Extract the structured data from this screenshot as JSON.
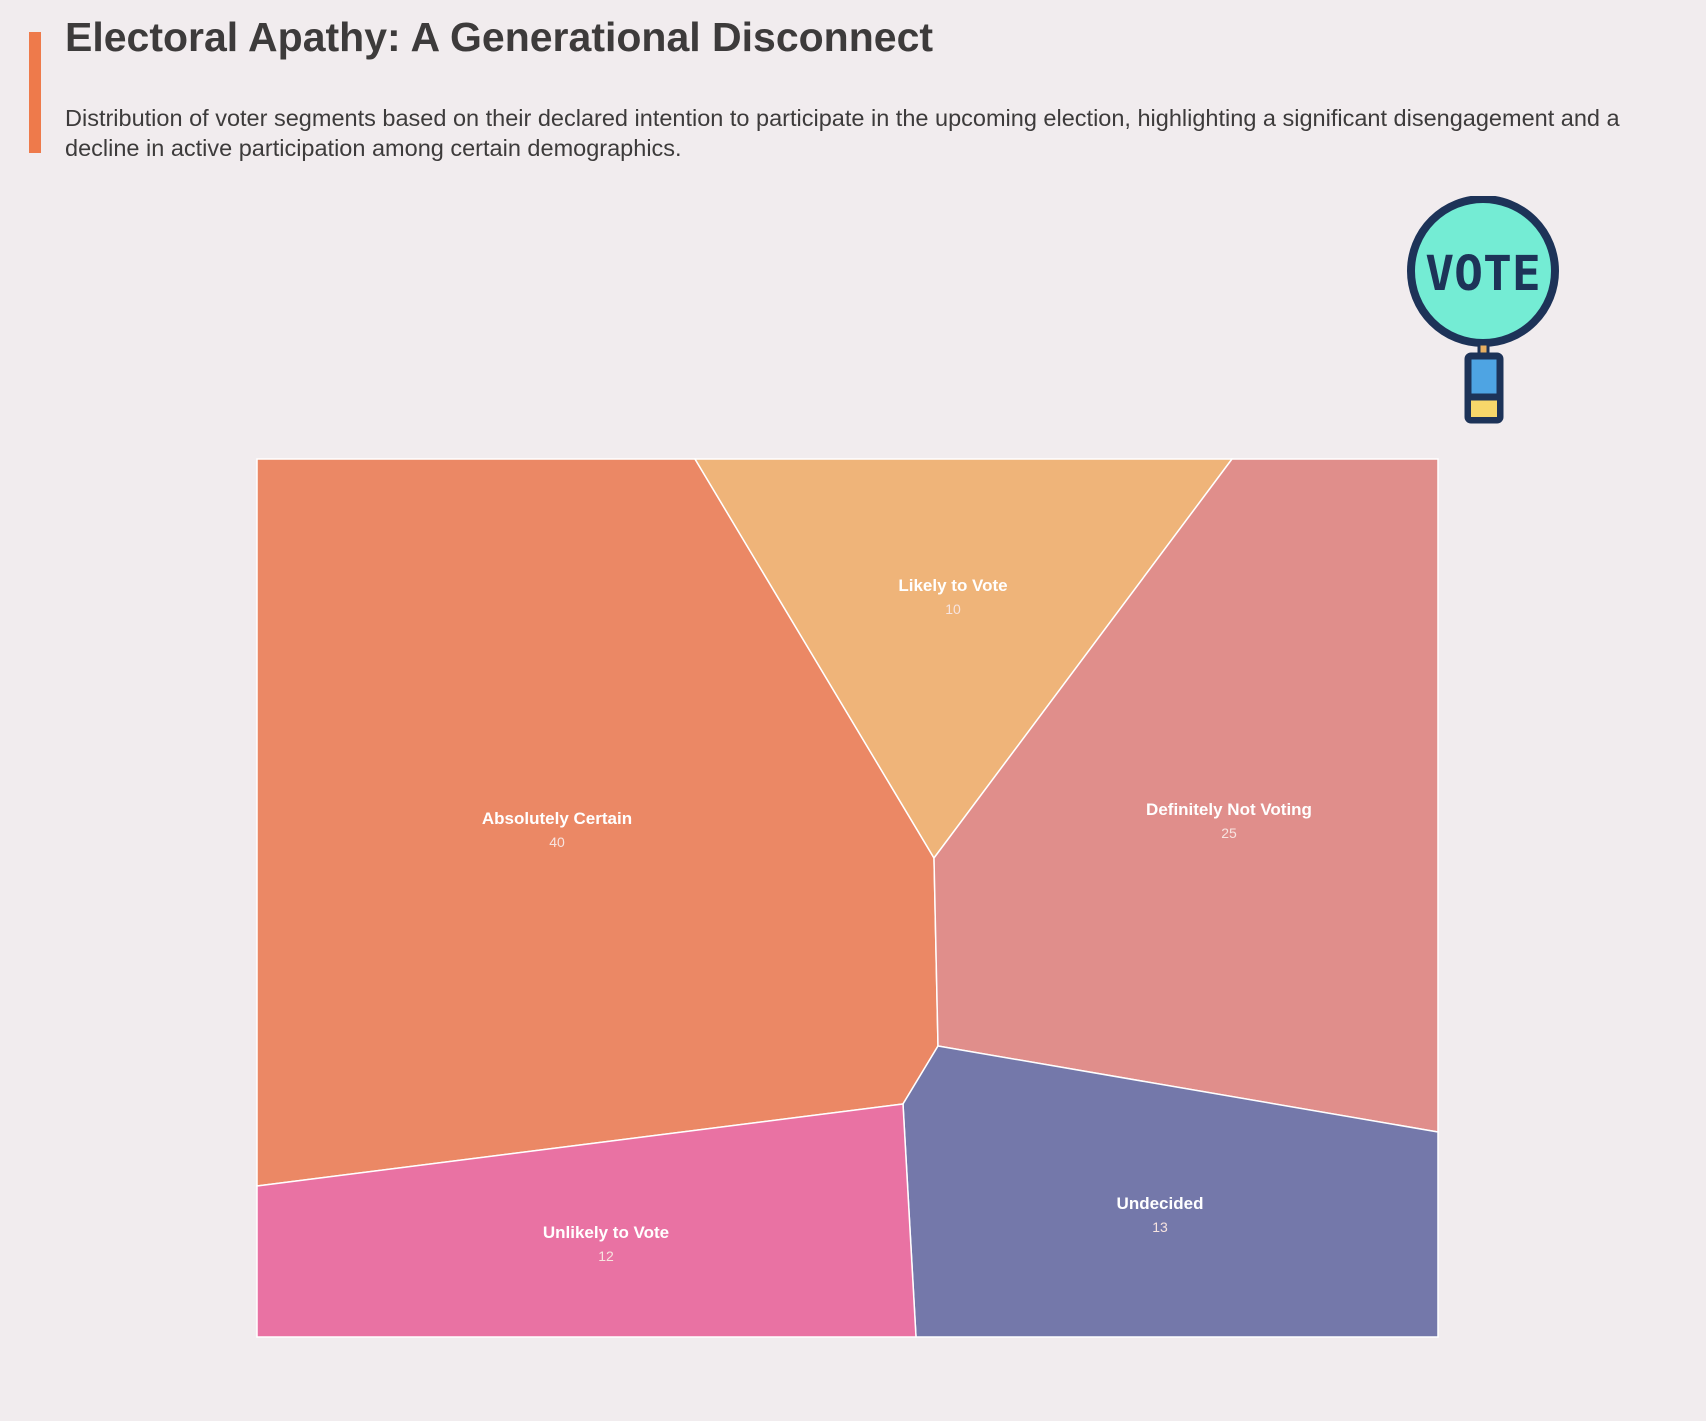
{
  "header": {
    "title": "Electoral Apathy: A Generational Disconnect",
    "subtitle": "Distribution of voter segments based on their declared intention to participate in the upcoming election, highlighting a significant disengagement and a decline in active participation among certain demographics."
  },
  "icon": {
    "name": "vote-sign-icon",
    "text": "VOTE"
  },
  "colors": {
    "accent": "#ee7a4b",
    "background": "#f1ecee",
    "text": "#3d3b3b"
  },
  "chart_data": {
    "type": "voronoi-treemap",
    "title": "Electoral Apathy: A Generational Disconnect",
    "segments": [
      {
        "name": "Absolutely Certain",
        "value": 40,
        "color": "#eb8865"
      },
      {
        "name": "Likely to Vote",
        "value": 10,
        "color": "#efb479"
      },
      {
        "name": "Definitely Not Voting",
        "value": 25,
        "color": "#e08e8b"
      },
      {
        "name": "Undecided",
        "value": 13,
        "color": "#7478aa"
      },
      {
        "name": "Unlikely to Vote",
        "value": 12,
        "color": "#e972a3"
      }
    ]
  }
}
